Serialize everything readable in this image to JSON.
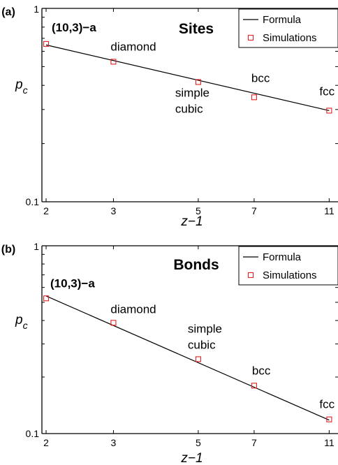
{
  "chart_data": [
    {
      "type": "scatter",
      "panel_label": "(a)",
      "title": "Sites",
      "ylabel_main": "p",
      "ylabel_sub": "c",
      "xlabel": "z−1",
      "x_scale": "log",
      "y_scale": "log",
      "xlim": [
        1.95,
        11.6
      ],
      "ylim": [
        0.1,
        1
      ],
      "x_ticks": [
        2,
        3,
        5,
        7,
        11
      ],
      "x_tick_labels": [
        "2",
        "3",
        "5",
        "7",
        "11"
      ],
      "y_tick_labels": [
        "0.1",
        "1"
      ],
      "legend_position": "top-right",
      "series": [
        {
          "name": "Formula",
          "kind": "line",
          "x": [
            2,
            11
          ],
          "y": [
            0.647,
            0.296
          ]
        },
        {
          "name": "Simulations",
          "kind": "markers",
          "x": [
            2,
            3,
            5,
            7,
            11
          ],
          "y": [
            0.655,
            0.53,
            0.416,
            0.347,
            0.296
          ]
        }
      ],
      "annotations": [
        {
          "text": "(10,3)−a",
          "x": 2,
          "y": 0.655,
          "bold": true
        },
        {
          "text": "diamond",
          "x": 3,
          "y": 0.53
        },
        {
          "text": "simple",
          "x": 5,
          "y": 0.416
        },
        {
          "text": "cubic",
          "x": 5,
          "y": 0.416
        },
        {
          "text": "bcc",
          "x": 7,
          "y": 0.347
        },
        {
          "text": "fcc",
          "x": 11,
          "y": 0.296
        }
      ]
    },
    {
      "type": "scatter",
      "panel_label": "(b)",
      "title": "Bonds",
      "ylabel_main": "p",
      "ylabel_sub": "c",
      "xlabel": "z−1",
      "x_scale": "log",
      "y_scale": "log",
      "xlim": [
        1.95,
        11.6
      ],
      "ylim": [
        0.1,
        1
      ],
      "x_ticks": [
        2,
        3,
        5,
        7,
        11
      ],
      "x_tick_labels": [
        "2",
        "3",
        "5",
        "7",
        "11"
      ],
      "y_tick_labels": [
        "0.1",
        "1"
      ],
      "legend_position": "top-right",
      "series": [
        {
          "name": "Formula",
          "kind": "line",
          "x": [
            2,
            11
          ],
          "y": [
            0.54,
            0.118
          ]
        },
        {
          "name": "Simulations",
          "kind": "markers",
          "x": [
            2,
            3,
            5,
            7,
            11
          ],
          "y": [
            0.525,
            0.389,
            0.249,
            0.18,
            0.119
          ]
        }
      ],
      "annotations": [
        {
          "text": "(10,3)−a",
          "x": 2,
          "y": 0.525,
          "bold": true
        },
        {
          "text": "diamond",
          "x": 3,
          "y": 0.389
        },
        {
          "text": "simple",
          "x": 5,
          "y": 0.249
        },
        {
          "text": "cubic",
          "x": 5,
          "y": 0.249
        },
        {
          "text": "bcc",
          "x": 7,
          "y": 0.18
        },
        {
          "text": "fcc",
          "x": 11,
          "y": 0.119
        }
      ]
    }
  ],
  "colors": {
    "formula_line": "#000000",
    "simulation_marker": "#e02020",
    "axes": "#000000"
  }
}
